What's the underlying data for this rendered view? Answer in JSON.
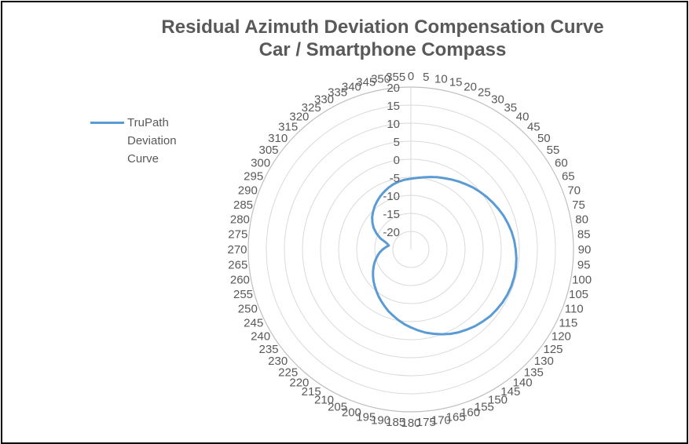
{
  "chart_data": {
    "type": "radar",
    "title": [
      "Residual Azimuth Deviation Compensation Curve",
      "Car / Smartphone Compass"
    ],
    "categories": [
      0,
      5,
      10,
      15,
      20,
      25,
      30,
      35,
      40,
      45,
      50,
      55,
      60,
      65,
      70,
      75,
      80,
      85,
      90,
      95,
      100,
      105,
      110,
      115,
      120,
      125,
      130,
      135,
      140,
      145,
      150,
      155,
      160,
      165,
      170,
      175,
      180,
      185,
      190,
      195,
      200,
      205,
      210,
      215,
      220,
      225,
      230,
      235,
      240,
      245,
      250,
      255,
      260,
      265,
      270,
      275,
      280,
      285,
      290,
      295,
      300,
      305,
      310,
      315,
      320,
      325,
      330,
      335,
      340,
      345,
      350,
      355
    ],
    "category_labels": [
      "0",
      "5",
      "10",
      "15",
      "20",
      "25",
      "30",
      "35",
      "40",
      "45",
      "50",
      "55",
      "60",
      "65",
      "70",
      "75",
      "80",
      "85",
      "90",
      "95",
      "100",
      "105",
      "110",
      "115",
      "120",
      "125",
      "130",
      "135",
      "140",
      "145",
      "150",
      "155",
      "160",
      "165",
      "170",
      "175",
      "180",
      "185",
      "190",
      "195",
      "200",
      "205",
      "210",
      "215",
      "220",
      "225",
      "230",
      "235",
      "240",
      "245",
      "250",
      "255",
      "260",
      "265",
      "270",
      "275",
      "280",
      "285",
      "290",
      "295",
      "300",
      "305",
      "310",
      "315",
      "320",
      "325",
      "330",
      "335",
      "340",
      "345",
      "350",
      "355"
    ],
    "radial_axis": {
      "min": -25,
      "max": 20,
      "ticks": [
        -20,
        -15,
        -10,
        -5,
        0,
        5,
        10,
        15,
        20
      ],
      "tick_labels": [
        "-20",
        "-15",
        "-10",
        "-5",
        "0",
        "5",
        "10",
        "15",
        "20"
      ]
    },
    "series": [
      {
        "name": "TruPath Deviation Curve",
        "color": "#5b9bd5",
        "values": [
          -5.4,
          -5.1,
          -4.7,
          -4.2,
          -3.7,
          -3.2,
          -2.6,
          -2.0,
          -1.4,
          -0.7,
          -0.1,
          0.5,
          1.1,
          1.7,
          2.3,
          2.8,
          3.3,
          3.7,
          4.0,
          4.3,
          4.5,
          4.6,
          4.6,
          4.5,
          4.3,
          4.0,
          3.7,
          3.2,
          2.7,
          2.1,
          1.5,
          0.8,
          0.0,
          -0.8,
          -1.6,
          -2.5,
          -3.4,
          -4.2,
          -5.1,
          -6.0,
          -6.8,
          -7.7,
          -8.5,
          -9.3,
          -10.1,
          -10.8,
          -11.5,
          -12.2,
          -12.9,
          -13.6,
          -14.3,
          -15.0,
          -15.7,
          -16.4,
          -17.2,
          -18.0,
          -18.8,
          -18.0,
          -16.0,
          -14.5,
          -13.1,
          -12.0,
          -11.0,
          -10.2,
          -9.4,
          -8.7,
          -8.0,
          -7.4,
          -6.8,
          -6.3,
          -5.9,
          -5.6
        ]
      }
    ],
    "legend": {
      "position": "left",
      "lines": [
        "TruPath",
        "Deviation",
        "Curve"
      ]
    },
    "grid": true
  }
}
